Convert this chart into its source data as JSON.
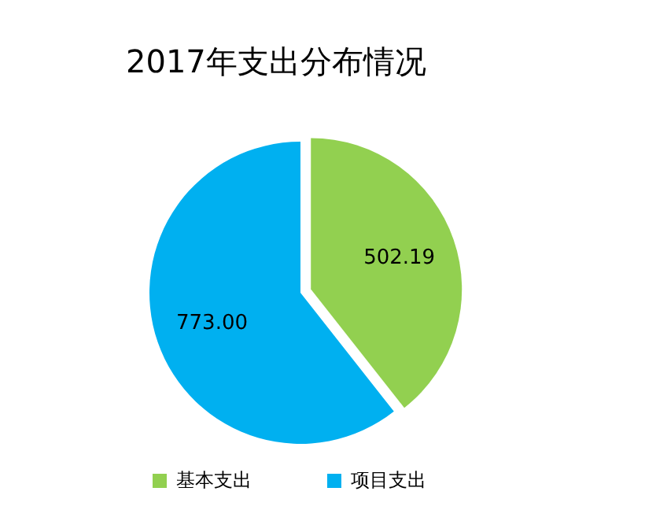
{
  "chart_data": {
    "type": "pie",
    "title": "2017年支出分布情况",
    "categories": [
      "基本支出",
      "项目支出"
    ],
    "values": [
      502.19,
      773.0
    ],
    "colors": [
      "#92d050",
      "#00b0f0"
    ],
    "value_labels": [
      "502.19",
      "773.00"
    ],
    "legend": "bottom"
  }
}
